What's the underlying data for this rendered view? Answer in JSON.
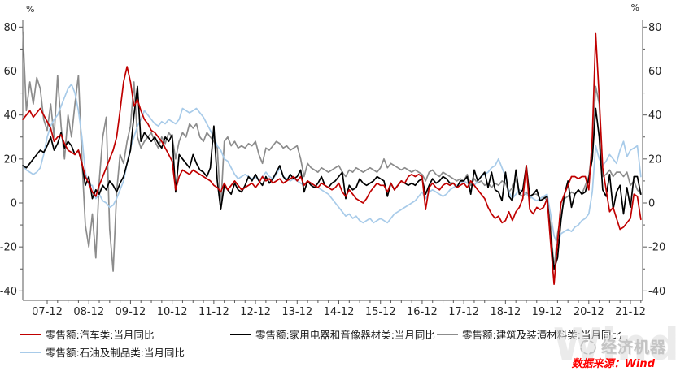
{
  "page": {
    "background": "#ffffff"
  },
  "chart_data": {
    "type": "line",
    "title": "",
    "grid": false,
    "legend_position": "bottom",
    "y_unit_left": "%",
    "y_unit_right": "%",
    "ylim": [
      -44,
      83
    ],
    "y_ticks": [
      -40,
      -20,
      0,
      20,
      40,
      60,
      80
    ],
    "y_minor_step": 10,
    "x_frequency": "monthly",
    "x_start": "2007-05",
    "x_end": "2022-03",
    "x_tick_labels": [
      "07-12",
      "08-12",
      "09-12",
      "10-12",
      "11-12",
      "12-12",
      "13-12",
      "14-12",
      "15-12",
      "16-12",
      "17-12",
      "18-12",
      "19-12",
      "20-12",
      "21-12"
    ],
    "series": [
      {
        "name": "零售额:汽车类:当月同比",
        "color": "#c00000",
        "values": [
          38,
          40,
          42,
          39,
          41,
          43,
          40,
          37,
          34,
          28,
          30,
          31,
          27,
          24,
          23,
          22,
          24,
          18,
          12,
          9,
          5,
          3,
          8,
          12,
          16,
          20,
          24,
          30,
          42,
          55,
          62,
          55,
          44,
          47,
          42,
          38,
          36,
          33,
          32,
          30,
          28,
          25,
          22,
          19,
          6,
          12,
          15,
          14,
          13,
          15,
          14,
          13,
          12,
          11,
          10,
          8,
          7,
          5,
          9,
          6,
          8,
          10,
          8,
          6,
          7,
          8,
          9,
          7,
          9,
          12,
          10,
          11,
          9,
          10,
          11,
          9,
          10,
          11,
          12,
          10,
          12,
          8,
          10,
          9,
          8,
          7,
          9,
          8,
          7,
          6,
          7,
          9,
          5,
          3,
          6,
          4,
          2,
          1,
          0,
          2,
          5,
          7,
          9,
          8,
          8,
          5,
          9,
          6,
          8,
          10,
          9,
          12,
          13,
          12,
          13,
          12,
          -3,
          7,
          9,
          7,
          6,
          8,
          9,
          8,
          9,
          7,
          8,
          9,
          7,
          10,
          8,
          6,
          4,
          2,
          -2,
          -5,
          -7,
          -6,
          -9,
          -8,
          -4,
          -8,
          -4,
          -2,
          2,
          17,
          -3,
          -5,
          -2,
          -3,
          -2,
          2,
          -18,
          -37,
          -18,
          0,
          4,
          8,
          12,
          12,
          11,
          12,
          12,
          6,
          30,
          77,
          48,
          16,
          6,
          -4,
          -2,
          -7,
          -12,
          -11,
          -9,
          -7,
          4,
          3,
          -7.5
        ]
      },
      {
        "name": "零售额:家用电器和音像器材类:当月同比",
        "color": "#000000",
        "values": [
          17,
          16,
          18,
          20,
          22,
          24,
          23,
          26,
          30,
          24,
          27,
          32,
          25,
          28,
          26,
          22,
          24,
          18,
          8,
          12,
          2,
          6,
          4,
          8,
          6,
          10,
          8,
          5,
          9,
          12,
          18,
          24,
          40,
          53,
          28,
          32,
          30,
          28,
          30,
          27,
          25,
          30,
          28,
          31,
          5,
          22,
          20,
          18,
          16,
          22,
          18,
          15,
          14,
          12,
          16,
          35,
          10,
          -3,
          8,
          6,
          4,
          9,
          6,
          5,
          8,
          12,
          10,
          13,
          10,
          8,
          12,
          9,
          11,
          14,
          17,
          12,
          10,
          13,
          11,
          12,
          15,
          5,
          10,
          8,
          7,
          9,
          12,
          8,
          7,
          9,
          10,
          12,
          14,
          2,
          8,
          6,
          7,
          11,
          9,
          8,
          9,
          10,
          12,
          11,
          10,
          3,
          9,
          6,
          8,
          10,
          9,
          8,
          9,
          8,
          10,
          11,
          4,
          8,
          11,
          9,
          10,
          12,
          11,
          9,
          9,
          7,
          10,
          10,
          12,
          4,
          15,
          10,
          12,
          14,
          7,
          14,
          6,
          5,
          1,
          14,
          3,
          1,
          15,
          4,
          6,
          17,
          3,
          4,
          6,
          1,
          2,
          3,
          -15,
          -30,
          -25,
          -8,
          4,
          10,
          -2,
          4,
          6,
          4,
          5,
          11,
          20,
          43,
          30,
          6,
          3,
          13,
          -3,
          5,
          8,
          -5,
          7,
          -2,
          12,
          12,
          4
        ]
      },
      {
        "name": "零售额:建筑及装潢材料类:当月同比",
        "color": "#8c8c8c",
        "values": [
          78,
          42,
          55,
          45,
          57,
          52,
          38,
          33,
          45,
          30,
          58,
          35,
          20,
          40,
          30,
          45,
          58,
          20,
          -10,
          -20,
          -5,
          -25,
          10,
          30,
          39,
          -12,
          -31,
          5,
          22,
          18,
          28,
          35,
          55,
          30,
          25,
          28,
          30,
          32,
          28,
          25,
          30,
          27,
          32,
          30,
          20,
          28,
          32,
          30,
          36,
          34,
          36,
          30,
          28,
          32,
          30,
          28,
          25,
          -2,
          28,
          30,
          26,
          28,
          25,
          26,
          25,
          27,
          26,
          28,
          22,
          18,
          25,
          24,
          26,
          28,
          27,
          25,
          26,
          24,
          25,
          26,
          20,
          12,
          18,
          16,
          15,
          14,
          16,
          15,
          14,
          15,
          16,
          17,
          14,
          12,
          15,
          14,
          16,
          15,
          14,
          15,
          16,
          15,
          14,
          16,
          20,
          16,
          18,
          17,
          16,
          15,
          16,
          15,
          14,
          15,
          14,
          13,
          10,
          14,
          15,
          13,
          12,
          14,
          13,
          12,
          11,
          10,
          11,
          10,
          13,
          8,
          11,
          9,
          10,
          8,
          9,
          7,
          9,
          8,
          10,
          9,
          5,
          7,
          11,
          4,
          3,
          5,
          2,
          4,
          4,
          2,
          3,
          1,
          -10,
          -30,
          -14,
          -6,
          2,
          3,
          5,
          4,
          6,
          4,
          8,
          12,
          25,
          53,
          45,
          12,
          13,
          15,
          12,
          14,
          14,
          12,
          14,
          8,
          10,
          6,
          4
        ]
      },
      {
        "name": "零售额:石油及制品类:当月同比",
        "color": "#a8cbe9",
        "values": [
          17,
          15,
          14,
          13,
          14,
          16,
          22,
          30,
          35,
          38,
          40,
          44,
          48,
          52,
          54,
          50,
          42,
          30,
          14,
          8,
          8,
          2,
          4,
          1,
          0,
          -2,
          -1,
          2,
          6,
          10,
          18,
          25,
          30,
          35,
          38,
          42,
          40,
          38,
          36,
          35,
          37,
          36,
          38,
          37,
          36,
          38,
          43,
          42,
          41,
          42,
          43,
          41,
          39,
          36,
          33,
          30,
          26,
          24,
          20,
          19,
          16,
          13,
          11,
          12,
          13,
          12,
          11,
          12,
          10,
          12,
          14,
          12,
          11,
          13,
          16,
          12,
          11,
          10,
          11,
          10,
          9,
          8,
          10,
          9,
          8,
          7,
          6,
          5,
          4,
          2,
          0,
          -2,
          -4,
          -6,
          -5,
          -7,
          -6,
          -8,
          -9,
          -8,
          -7,
          -9,
          -8,
          -7,
          -8,
          -9,
          -7,
          -5,
          -4,
          -3,
          -2,
          -1,
          0,
          1,
          3,
          5,
          2,
          5,
          6,
          5,
          4,
          3,
          4,
          6,
          7,
          8,
          9,
          10,
          9,
          10,
          8,
          10,
          12,
          13,
          14,
          16,
          17,
          20,
          16,
          12,
          5,
          2,
          4,
          6,
          5,
          4,
          3,
          2,
          1,
          2,
          3,
          4,
          -5,
          -15,
          -19,
          -14,
          -13,
          -12,
          -13,
          -11,
          -10,
          -8,
          -7,
          -5,
          5,
          26,
          20,
          17,
          19,
          22,
          20,
          18,
          24,
          28,
          21,
          24,
          25,
          26,
          12
        ]
      }
    ]
  },
  "footer": {
    "source_text": "数据来源：Wind",
    "source_color": "#ff0000"
  },
  "watermark": {
    "brand_text": "经济机器",
    "background_text": "Wind"
  }
}
